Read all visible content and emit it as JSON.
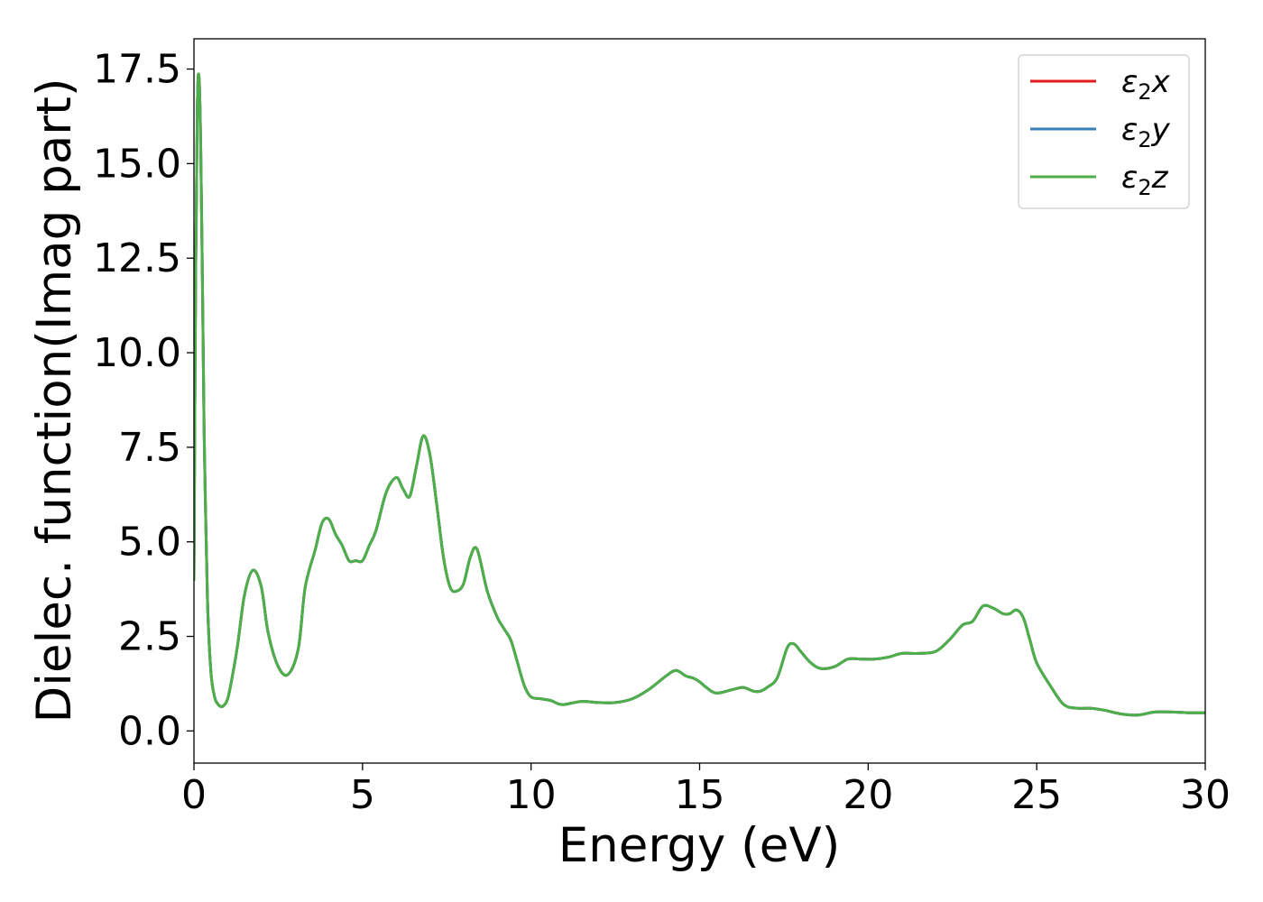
{
  "chart_data": {
    "type": "line",
    "title": "",
    "xlabel": "Energy (eV)",
    "ylabel": "Dielec. function(Imag part)",
    "xlim": [
      0,
      30
    ],
    "ylim": [
      -0.85,
      18.3
    ],
    "x_ticks": [
      "0",
      "5",
      "10",
      "15",
      "20",
      "25",
      "30"
    ],
    "y_ticks": [
      "0.0",
      "2.5",
      "5.0",
      "7.5",
      "10.0",
      "12.5",
      "15.0",
      "17.5"
    ],
    "grid": false,
    "legend_position": "top-right",
    "colors": {
      "x": "#e41a1c",
      "y": "#377eb8",
      "z": "#4daf4a"
    },
    "legend": [
      {
        "base": "ε",
        "sub": "2",
        "comp": "x"
      },
      {
        "base": "ε",
        "sub": "2",
        "comp": "y"
      },
      {
        "base": "ε",
        "sub": "2",
        "comp": "z"
      }
    ],
    "note": "All three series coincide; the z series is drawn on top.",
    "x": [
      0,
      0.05,
      0.1,
      0.15,
      0.2,
      0.25,
      0.3,
      0.4,
      0.5,
      0.6,
      0.7,
      0.85,
      1.0,
      1.15,
      1.3,
      1.5,
      1.75,
      2.0,
      2.2,
      2.5,
      2.8,
      3.1,
      3.3,
      3.6,
      3.8,
      4.0,
      4.2,
      4.4,
      4.6,
      4.8,
      5.0,
      5.2,
      5.4,
      5.7,
      6.0,
      6.2,
      6.4,
      6.6,
      6.8,
      7.0,
      7.2,
      7.4,
      7.6,
      7.8,
      8.0,
      8.2,
      8.4,
      8.7,
      9.0,
      9.2,
      9.4,
      9.6,
      9.8,
      10.0,
      10.3,
      10.6,
      10.8,
      11.0,
      11.5,
      12.0,
      12.5,
      13.0,
      13.5,
      14.0,
      14.3,
      14.6,
      14.8,
      15.0,
      15.2,
      15.5,
      16.0,
      16.3,
      16.6,
      16.8,
      17.0,
      17.3,
      17.6,
      17.8,
      18.0,
      18.3,
      18.6,
      19.0,
      19.4,
      19.8,
      20.2,
      20.6,
      21.0,
      21.5,
      22.0,
      22.4,
      22.8,
      23.1,
      23.4,
      23.7,
      24.0,
      24.2,
      24.4,
      24.6,
      24.8,
      25.0,
      25.4,
      25.8,
      26.2,
      26.6,
      27.0,
      27.5,
      28.0,
      28.5,
      29.0,
      29.5,
      30.0
    ],
    "series": [
      {
        "name": "ε2x",
        "color_key": "x",
        "values": [
          4.0,
          12.0,
          16.5,
          17.3,
          15.5,
          12.0,
          8.0,
          3.5,
          1.6,
          0.95,
          0.72,
          0.65,
          0.85,
          1.5,
          2.3,
          3.6,
          4.25,
          3.8,
          2.6,
          1.7,
          1.5,
          2.2,
          3.8,
          4.8,
          5.5,
          5.6,
          5.2,
          4.9,
          4.5,
          4.5,
          4.5,
          4.9,
          5.3,
          6.3,
          6.7,
          6.4,
          6.2,
          7.0,
          7.8,
          7.3,
          6.0,
          4.6,
          3.8,
          3.7,
          3.9,
          4.6,
          4.8,
          3.7,
          3.0,
          2.7,
          2.4,
          1.8,
          1.2,
          0.9,
          0.85,
          0.8,
          0.72,
          0.7,
          0.78,
          0.75,
          0.75,
          0.85,
          1.1,
          1.45,
          1.6,
          1.45,
          1.4,
          1.3,
          1.15,
          1.0,
          1.1,
          1.15,
          1.05,
          1.05,
          1.15,
          1.4,
          2.2,
          2.3,
          2.1,
          1.8,
          1.65,
          1.7,
          1.9,
          1.9,
          1.9,
          1.95,
          2.05,
          2.05,
          2.1,
          2.4,
          2.8,
          2.9,
          3.3,
          3.25,
          3.1,
          3.1,
          3.2,
          3.0,
          2.4,
          1.8,
          1.2,
          0.7,
          0.6,
          0.6,
          0.55,
          0.45,
          0.42,
          0.5,
          0.5,
          0.48,
          0.48
        ]
      },
      {
        "name": "ε2y",
        "color_key": "y",
        "values": [
          4.0,
          12.0,
          16.5,
          17.3,
          15.5,
          12.0,
          8.0,
          3.5,
          1.6,
          0.95,
          0.72,
          0.65,
          0.85,
          1.5,
          2.3,
          3.6,
          4.25,
          3.8,
          2.6,
          1.7,
          1.5,
          2.2,
          3.8,
          4.8,
          5.5,
          5.6,
          5.2,
          4.9,
          4.5,
          4.5,
          4.5,
          4.9,
          5.3,
          6.3,
          6.7,
          6.4,
          6.2,
          7.0,
          7.8,
          7.3,
          6.0,
          4.6,
          3.8,
          3.7,
          3.9,
          4.6,
          4.8,
          3.7,
          3.0,
          2.7,
          2.4,
          1.8,
          1.2,
          0.9,
          0.85,
          0.8,
          0.72,
          0.7,
          0.78,
          0.75,
          0.75,
          0.85,
          1.1,
          1.45,
          1.6,
          1.45,
          1.4,
          1.3,
          1.15,
          1.0,
          1.1,
          1.15,
          1.05,
          1.05,
          1.15,
          1.4,
          2.2,
          2.3,
          2.1,
          1.8,
          1.65,
          1.7,
          1.9,
          1.9,
          1.9,
          1.95,
          2.05,
          2.05,
          2.1,
          2.4,
          2.8,
          2.9,
          3.3,
          3.25,
          3.1,
          3.1,
          3.2,
          3.0,
          2.4,
          1.8,
          1.2,
          0.7,
          0.6,
          0.6,
          0.55,
          0.45,
          0.42,
          0.5,
          0.5,
          0.48,
          0.48
        ]
      },
      {
        "name": "ε2z",
        "color_key": "z",
        "values": [
          4.0,
          12.0,
          16.5,
          17.3,
          15.5,
          12.0,
          8.0,
          3.5,
          1.6,
          0.95,
          0.72,
          0.65,
          0.85,
          1.5,
          2.3,
          3.6,
          4.25,
          3.8,
          2.6,
          1.7,
          1.5,
          2.2,
          3.8,
          4.8,
          5.5,
          5.6,
          5.2,
          4.9,
          4.5,
          4.5,
          4.5,
          4.9,
          5.3,
          6.3,
          6.7,
          6.4,
          6.2,
          7.0,
          7.8,
          7.3,
          6.0,
          4.6,
          3.8,
          3.7,
          3.9,
          4.6,
          4.8,
          3.7,
          3.0,
          2.7,
          2.4,
          1.8,
          1.2,
          0.9,
          0.85,
          0.8,
          0.72,
          0.7,
          0.78,
          0.75,
          0.75,
          0.85,
          1.1,
          1.45,
          1.6,
          1.45,
          1.4,
          1.3,
          1.15,
          1.0,
          1.1,
          1.15,
          1.05,
          1.05,
          1.15,
          1.4,
          2.2,
          2.3,
          2.1,
          1.8,
          1.65,
          1.7,
          1.9,
          1.9,
          1.9,
          1.95,
          2.05,
          2.05,
          2.1,
          2.4,
          2.8,
          2.9,
          3.3,
          3.25,
          3.1,
          3.1,
          3.2,
          3.0,
          2.4,
          1.8,
          1.2,
          0.7,
          0.6,
          0.6,
          0.55,
          0.45,
          0.42,
          0.5,
          0.5,
          0.48,
          0.48
        ]
      }
    ]
  }
}
